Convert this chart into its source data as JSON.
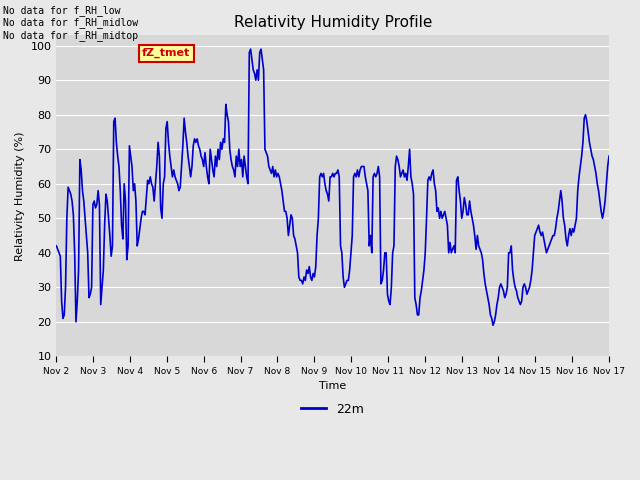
{
  "title": "Relativity Humidity Profile",
  "ylabel": "Relativity Humidity (%)",
  "xlabel": "Time",
  "ylim": [
    10,
    103
  ],
  "yticks": [
    10,
    20,
    30,
    40,
    50,
    60,
    70,
    80,
    90,
    100
  ],
  "line_color": "#0000cc",
  "line_width": 1.2,
  "bg_color": "#e8e8e8",
  "plot_bg_color": "#d8d8d8",
  "annotations_top_left": [
    "No data for f_RH_low",
    "No data for f_RH_midlow",
    "No data for f_RH_midtop"
  ],
  "legend_label": "22m",
  "legend_box_color": "#ffff99",
  "legend_box_edge": "#cc0000",
  "legend_text_color": "#cc0000",
  "x_tick_labels": [
    "Nov 2",
    "Nov 3",
    "Nov 4",
    "Nov 5",
    "Nov 6",
    "Nov 7",
    "Nov 8",
    "Nov 9",
    "Nov 10",
    "Nov 11",
    "Nov 12",
    "Nov 13",
    "Nov 14",
    "Nov 15",
    "Nov 16",
    "Nov 17"
  ],
  "fztmet_label": "fZ_tmet",
  "rh_values": [
    42,
    41,
    40,
    39,
    26,
    21,
    22,
    30,
    50,
    59,
    58,
    57,
    55,
    51,
    40,
    20,
    26,
    35,
    67,
    64,
    58,
    55,
    50,
    45,
    40,
    27,
    28,
    30,
    54,
    55,
    53,
    54,
    58,
    54,
    25,
    30,
    35,
    48,
    57,
    55,
    50,
    45,
    39,
    42,
    78,
    79,
    72,
    68,
    65,
    58,
    48,
    44,
    60,
    55,
    38,
    42,
    71,
    68,
    65,
    58,
    60,
    55,
    42,
    44,
    47,
    50,
    52,
    52,
    51,
    56,
    61,
    60,
    62,
    60,
    59,
    55,
    60,
    65,
    72,
    68,
    53,
    50,
    60,
    62,
    76,
    78,
    72,
    68,
    65,
    62,
    64,
    62,
    61,
    60,
    58,
    59,
    65,
    71,
    79,
    75,
    72,
    68,
    65,
    62,
    65,
    71,
    73,
    72,
    73,
    71,
    70,
    68,
    67,
    65,
    69,
    65,
    62,
    60,
    70,
    67,
    64,
    62,
    68,
    65,
    70,
    67,
    72,
    70,
    73,
    72,
    83,
    80,
    78,
    70,
    67,
    65,
    64,
    62,
    68,
    65,
    70,
    65,
    67,
    62,
    68,
    65,
    62,
    60,
    98,
    99,
    96,
    93,
    92,
    90,
    93,
    90,
    98,
    99,
    96,
    93,
    70,
    69,
    68,
    65,
    64,
    63,
    65,
    62,
    64,
    62,
    63,
    62,
    60,
    58,
    55,
    52,
    52,
    50,
    45,
    48,
    51,
    50,
    45,
    44,
    42,
    40,
    33,
    32,
    32,
    31,
    33,
    32,
    35,
    34,
    36,
    33,
    32,
    34,
    33,
    36,
    45,
    50,
    62,
    63,
    62,
    63,
    60,
    58,
    57,
    55,
    62,
    62,
    63,
    62,
    63,
    63,
    64,
    62,
    42,
    40,
    33,
    30,
    31,
    32,
    32,
    35,
    40,
    45,
    62,
    63,
    62,
    64,
    62,
    64,
    65,
    65,
    65,
    62,
    60,
    58,
    42,
    45,
    40,
    62,
    63,
    62,
    63,
    65,
    62,
    31,
    32,
    35,
    40,
    40,
    28,
    26,
    25,
    30,
    40,
    42,
    65,
    68,
    67,
    65,
    62,
    63,
    64,
    62,
    63,
    61,
    65,
    70,
    62,
    60,
    57,
    27,
    25,
    22,
    22,
    27,
    29,
    32,
    35,
    40,
    50,
    61,
    62,
    61,
    63,
    64,
    60,
    58,
    52,
    53,
    50,
    52,
    50,
    51,
    52,
    50,
    48,
    40,
    43,
    40,
    41,
    42,
    40,
    61,
    62,
    58,
    55,
    50,
    52,
    56,
    54,
    51,
    51,
    55,
    52,
    50,
    48,
    45,
    41,
    45,
    42,
    41,
    40,
    38,
    34,
    31,
    29,
    27,
    25,
    22,
    21,
    19,
    20,
    22,
    25,
    27,
    30,
    31,
    30,
    29,
    27,
    28,
    30,
    40,
    40,
    42,
    35,
    32,
    30,
    29,
    27,
    26,
    25,
    26,
    30,
    31,
    30,
    28,
    29,
    30,
    32,
    35,
    40,
    45,
    46,
    47,
    48,
    46,
    45,
    46,
    44,
    42,
    40,
    41,
    42,
    43,
    44,
    45,
    45,
    47,
    50,
    52,
    55,
    58,
    55,
    50,
    48,
    44,
    42,
    45,
    47,
    45,
    47,
    46,
    48,
    50,
    58,
    62,
    65,
    68,
    72,
    79,
    80,
    78,
    75,
    72,
    70,
    68,
    67,
    65,
    63,
    60,
    58,
    55,
    52,
    50,
    52,
    55,
    60,
    65,
    68
  ]
}
